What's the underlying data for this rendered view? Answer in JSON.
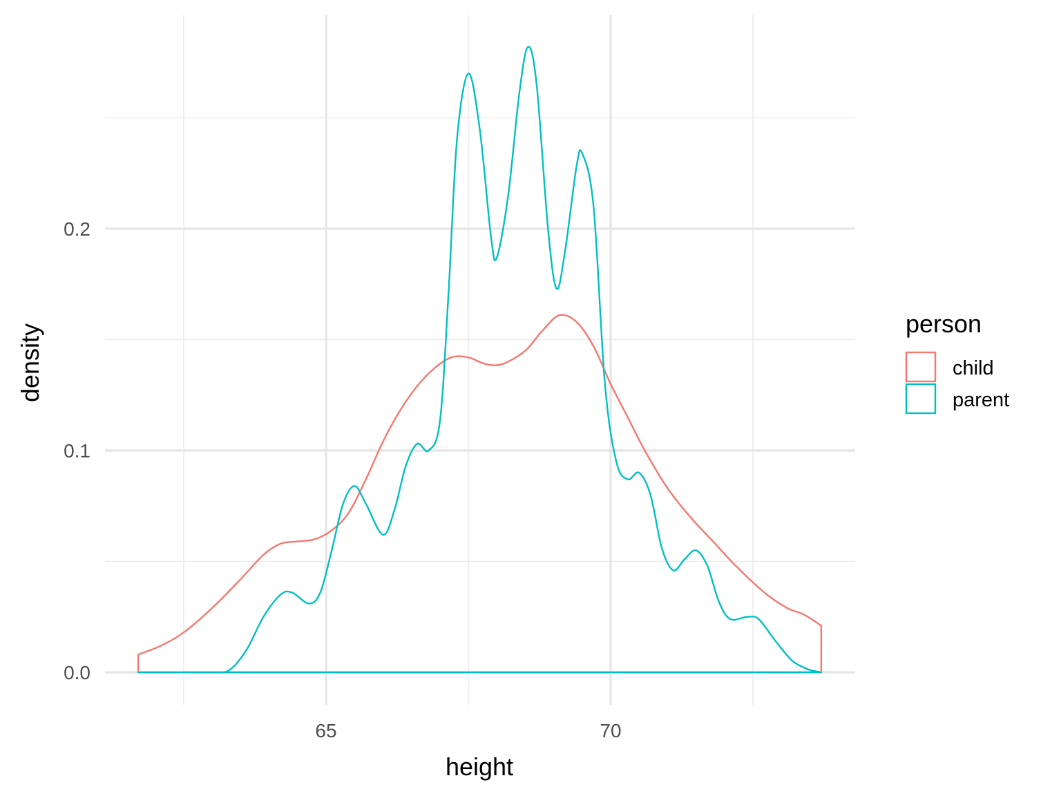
{
  "chart_data": {
    "type": "line",
    "subtype": "density",
    "xlabel": "height",
    "ylabel": "density",
    "xlim": [
      61.2,
      74.3
    ],
    "ylim": [
      -0.012,
      0.283
    ],
    "x_ticks": [
      65,
      70
    ],
    "x_tick_labels": [
      "65",
      "70"
    ],
    "x_minor_ticks": [
      62.5,
      67.5,
      72.5
    ],
    "y_ticks": [
      0.0,
      0.1,
      0.2
    ],
    "y_tick_labels": [
      "0.0",
      "0.1",
      "0.2"
    ],
    "y_minor_ticks": [
      0.05,
      0.15,
      0.25
    ],
    "grid": true,
    "legend": {
      "title": "person",
      "position": "right"
    },
    "series": [
      {
        "name": "child",
        "color": "#F8766D",
        "points": [
          [
            61.7,
            0.0
          ],
          [
            61.7,
            0.008
          ],
          [
            62.1,
            0.012
          ],
          [
            62.5,
            0.018
          ],
          [
            63.0,
            0.029
          ],
          [
            63.5,
            0.042
          ],
          [
            63.9,
            0.053
          ],
          [
            64.2,
            0.058
          ],
          [
            64.5,
            0.059
          ],
          [
            64.8,
            0.06
          ],
          [
            65.1,
            0.064
          ],
          [
            65.4,
            0.072
          ],
          [
            65.7,
            0.087
          ],
          [
            66.0,
            0.104
          ],
          [
            66.3,
            0.118
          ],
          [
            66.6,
            0.129
          ],
          [
            66.9,
            0.137
          ],
          [
            67.2,
            0.142
          ],
          [
            67.5,
            0.142
          ],
          [
            67.8,
            0.139
          ],
          [
            68.1,
            0.139
          ],
          [
            68.5,
            0.145
          ],
          [
            68.8,
            0.154
          ],
          [
            69.1,
            0.161
          ],
          [
            69.4,
            0.158
          ],
          [
            69.7,
            0.147
          ],
          [
            70.0,
            0.13
          ],
          [
            70.3,
            0.115
          ],
          [
            70.6,
            0.1
          ],
          [
            71.0,
            0.083
          ],
          [
            71.4,
            0.07
          ],
          [
            71.8,
            0.059
          ],
          [
            72.2,
            0.048
          ],
          [
            72.7,
            0.036
          ],
          [
            73.1,
            0.029
          ],
          [
            73.4,
            0.026
          ],
          [
            73.7,
            0.021
          ],
          [
            73.7,
            0.0
          ]
        ]
      },
      {
        "name": "parent",
        "color": "#00BFC4",
        "points": [
          [
            61.7,
            0.0
          ],
          [
            62.5,
            0.0
          ],
          [
            63.0,
            0.0
          ],
          [
            63.3,
            0.001
          ],
          [
            63.6,
            0.01
          ],
          [
            63.9,
            0.025
          ],
          [
            64.2,
            0.035
          ],
          [
            64.4,
            0.036
          ],
          [
            64.7,
            0.031
          ],
          [
            64.9,
            0.036
          ],
          [
            65.1,
            0.055
          ],
          [
            65.3,
            0.076
          ],
          [
            65.5,
            0.084
          ],
          [
            65.7,
            0.076
          ],
          [
            66.0,
            0.062
          ],
          [
            66.2,
            0.073
          ],
          [
            66.4,
            0.093
          ],
          [
            66.6,
            0.103
          ],
          [
            66.8,
            0.1
          ],
          [
            67.0,
            0.113
          ],
          [
            67.15,
            0.17
          ],
          [
            67.3,
            0.24
          ],
          [
            67.5,
            0.27
          ],
          [
            67.7,
            0.245
          ],
          [
            67.9,
            0.196
          ],
          [
            68.0,
            0.187
          ],
          [
            68.2,
            0.215
          ],
          [
            68.4,
            0.262
          ],
          [
            68.55,
            0.282
          ],
          [
            68.7,
            0.265
          ],
          [
            68.9,
            0.2
          ],
          [
            69.05,
            0.173
          ],
          [
            69.2,
            0.19
          ],
          [
            69.4,
            0.228
          ],
          [
            69.5,
            0.234
          ],
          [
            69.7,
            0.21
          ],
          [
            69.9,
            0.13
          ],
          [
            70.1,
            0.095
          ],
          [
            70.3,
            0.087
          ],
          [
            70.5,
            0.09
          ],
          [
            70.7,
            0.08
          ],
          [
            70.9,
            0.056
          ],
          [
            71.1,
            0.046
          ],
          [
            71.3,
            0.051
          ],
          [
            71.5,
            0.055
          ],
          [
            71.7,
            0.048
          ],
          [
            71.9,
            0.032
          ],
          [
            72.1,
            0.024
          ],
          [
            72.4,
            0.025
          ],
          [
            72.6,
            0.024
          ],
          [
            72.9,
            0.014
          ],
          [
            73.2,
            0.005
          ],
          [
            73.5,
            0.001
          ],
          [
            73.7,
            0.0
          ]
        ]
      }
    ]
  }
}
